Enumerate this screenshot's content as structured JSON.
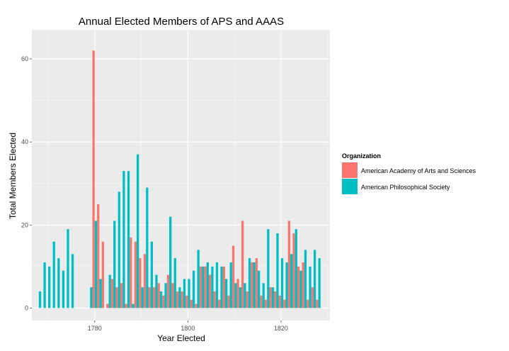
{
  "chart_data": {
    "type": "bar",
    "title": "Annual Elected Members of APS and AAAS",
    "xlabel": "Year Elected",
    "ylabel": "Total Members Elected",
    "xlim": [
      1766.5,
      1830.5
    ],
    "ylim": [
      -3,
      67
    ],
    "x_ticks": [
      1780,
      1800,
      1820
    ],
    "y_ticks": [
      0,
      20,
      40,
      60
    ],
    "grid": true,
    "legend_title": "Organization",
    "legend_position": "right",
    "series": [
      {
        "name": "American Academy of Arts and Sciences",
        "color": "#F8766D",
        "data": [
          [
            1780,
            62
          ],
          [
            1781,
            25
          ],
          [
            1782,
            16
          ],
          [
            1783,
            1
          ],
          [
            1784,
            7
          ],
          [
            1785,
            5
          ],
          [
            1786,
            6
          ],
          [
            1787,
            1
          ],
          [
            1788,
            17
          ],
          [
            1789,
            16
          ],
          [
            1790,
            12
          ],
          [
            1791,
            13
          ],
          [
            1792,
            5
          ],
          [
            1793,
            5
          ],
          [
            1794,
            6
          ],
          [
            1795,
            3
          ],
          [
            1796,
            8
          ],
          [
            1797,
            6
          ],
          [
            1798,
            4
          ],
          [
            1799,
            4
          ],
          [
            1800,
            3
          ],
          [
            1801,
            2
          ],
          [
            1802,
            1
          ],
          [
            1803,
            10
          ],
          [
            1804,
            10
          ],
          [
            1805,
            8
          ],
          [
            1806,
            4
          ],
          [
            1807,
            2
          ],
          [
            1808,
            10
          ],
          [
            1809,
            3
          ],
          [
            1810,
            15
          ],
          [
            1811,
            7
          ],
          [
            1812,
            21
          ],
          [
            1813,
            4
          ],
          [
            1814,
            11
          ],
          [
            1815,
            12
          ],
          [
            1816,
            3
          ],
          [
            1817,
            2
          ],
          [
            1818,
            5
          ],
          [
            1819,
            4
          ],
          [
            1820,
            3
          ],
          [
            1821,
            2
          ],
          [
            1822,
            21
          ],
          [
            1823,
            18
          ],
          [
            1824,
            10
          ],
          [
            1825,
            11
          ],
          [
            1826,
            2
          ],
          [
            1827,
            5
          ],
          [
            1828,
            2
          ]
        ]
      },
      {
        "name": "American Philosophical Society",
        "color": "#00BFC4",
        "data": [
          [
            1768,
            4
          ],
          [
            1769,
            11
          ],
          [
            1770,
            10
          ],
          [
            1771,
            16
          ],
          [
            1772,
            12
          ],
          [
            1773,
            9
          ],
          [
            1774,
            19
          ],
          [
            1775,
            13
          ],
          [
            1779,
            5
          ],
          [
            1780,
            21
          ],
          [
            1781,
            7
          ],
          [
            1783,
            8
          ],
          [
            1784,
            21
          ],
          [
            1785,
            28
          ],
          [
            1786,
            33
          ],
          [
            1787,
            33
          ],
          [
            1788,
            1
          ],
          [
            1789,
            37
          ],
          [
            1790,
            5
          ],
          [
            1791,
            29
          ],
          [
            1792,
            16
          ],
          [
            1793,
            8
          ],
          [
            1794,
            4
          ],
          [
            1795,
            6
          ],
          [
            1796,
            22
          ],
          [
            1797,
            12
          ],
          [
            1798,
            5
          ],
          [
            1799,
            7
          ],
          [
            1800,
            7
          ],
          [
            1801,
            9
          ],
          [
            1802,
            14
          ],
          [
            1803,
            10
          ],
          [
            1804,
            11
          ],
          [
            1805,
            10
          ],
          [
            1806,
            11
          ],
          [
            1807,
            10
          ],
          [
            1808,
            7
          ],
          [
            1809,
            11
          ],
          [
            1810,
            6
          ],
          [
            1811,
            5
          ],
          [
            1812,
            6
          ],
          [
            1813,
            12
          ],
          [
            1814,
            11
          ],
          [
            1815,
            9
          ],
          [
            1816,
            6
          ],
          [
            1817,
            19
          ],
          [
            1818,
            5
          ],
          [
            1819,
            18
          ],
          [
            1820,
            12
          ],
          [
            1821,
            11
          ],
          [
            1822,
            13
          ],
          [
            1823,
            19
          ],
          [
            1824,
            9
          ],
          [
            1825,
            14
          ],
          [
            1826,
            10
          ],
          [
            1827,
            14
          ],
          [
            1828,
            12
          ]
        ]
      }
    ]
  }
}
